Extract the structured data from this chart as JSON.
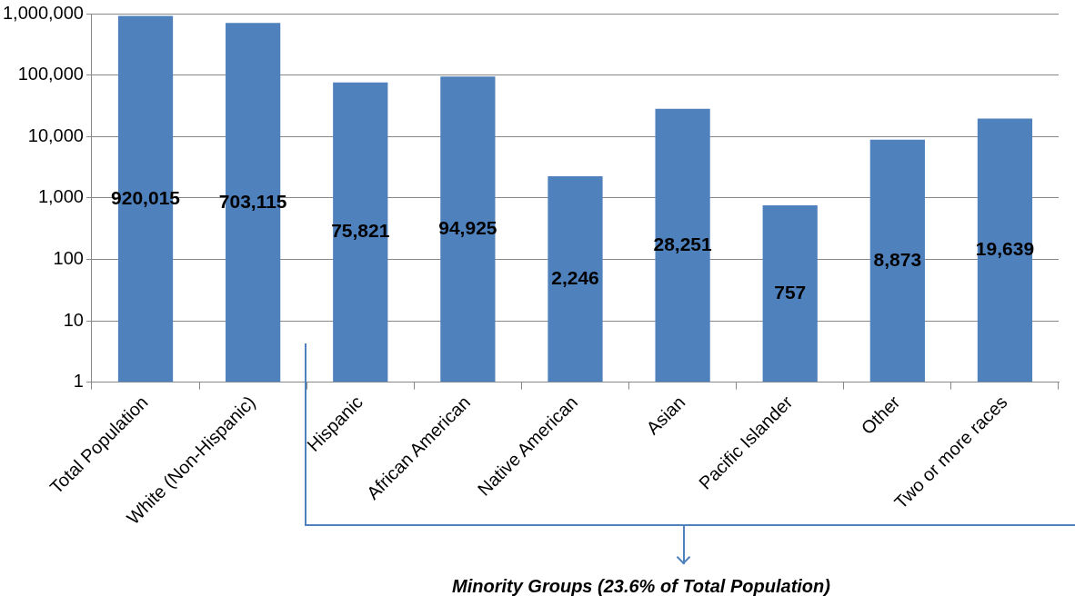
{
  "chart_data": {
    "type": "bar",
    "categories": [
      "Total Population",
      "White (Non-Hispanic)",
      "Hispanic",
      "African American",
      "Native American",
      "Asian",
      "Pacific Islander",
      "Other",
      "Two or more races"
    ],
    "values": [
      920015,
      703115,
      75821,
      94925,
      2246,
      28251,
      757,
      8873,
      19639
    ],
    "color": "#4f81bd",
    "log": "y",
    "ylim": [
      1,
      1000000
    ],
    "yticks": [
      1,
      10,
      100,
      {
        "value": 1000,
        "label": "1,000"
      },
      {
        "value": 10000,
        "label": "10,000"
      },
      {
        "value": 100000,
        "label": "100,000"
      },
      {
        "value": 1000000,
        "label": "1,000,000"
      }
    ],
    "value_labels": [
      "920,015",
      "703,115",
      "75,821",
      "94,925",
      "2,246",
      "28,251",
      "757",
      "8,873",
      "19,639"
    ],
    "grid": "y",
    "legend": false,
    "annotations": [
      "Minority Groups (23.6% of Total Population)"
    ]
  }
}
